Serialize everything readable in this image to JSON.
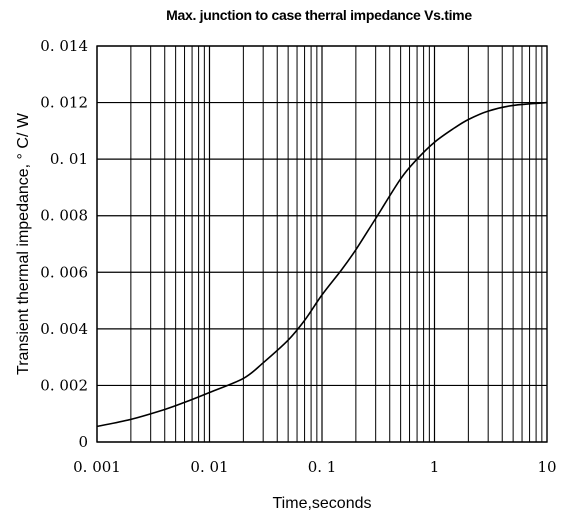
{
  "chart_data": {
    "type": "line",
    "title": "Max. junction to case therral impedance Vs.time",
    "xlabel": "Time,seconds",
    "ylabel": "Transient thermal impedance, ° C/ W",
    "x_scale": "log",
    "xlim": [
      0.001,
      10
    ],
    "ylim": [
      0,
      0.014
    ],
    "x_ticks": [
      "0. 001",
      "0. 01",
      "0. 1",
      "1",
      "10"
    ],
    "x_tick_values": [
      0.001,
      0.01,
      0.1,
      1,
      10
    ],
    "y_ticks": [
      "0",
      "0. 002",
      "0. 004",
      "0. 006",
      "0. 008",
      "0. 01",
      "0. 012",
      "0. 014"
    ],
    "y_tick_values": [
      0,
      0.002,
      0.004,
      0.006,
      0.008,
      0.01,
      0.012,
      0.014
    ],
    "grid": true,
    "series": [
      {
        "x": [
          0.001,
          0.002,
          0.004,
          0.006,
          0.01,
          0.02,
          0.03,
          0.05,
          0.07,
          0.1,
          0.15,
          0.2,
          0.3,
          0.5,
          0.7,
          1,
          1.5,
          2,
          3,
          5,
          10
        ],
        "y": [
          0.00055,
          0.0008,
          0.00115,
          0.0014,
          0.00175,
          0.00225,
          0.0028,
          0.0036,
          0.0043,
          0.0052,
          0.0061,
          0.0068,
          0.0079,
          0.0093,
          0.01,
          0.0106,
          0.0111,
          0.0114,
          0.0117,
          0.0119,
          0.012
        ]
      }
    ]
  }
}
